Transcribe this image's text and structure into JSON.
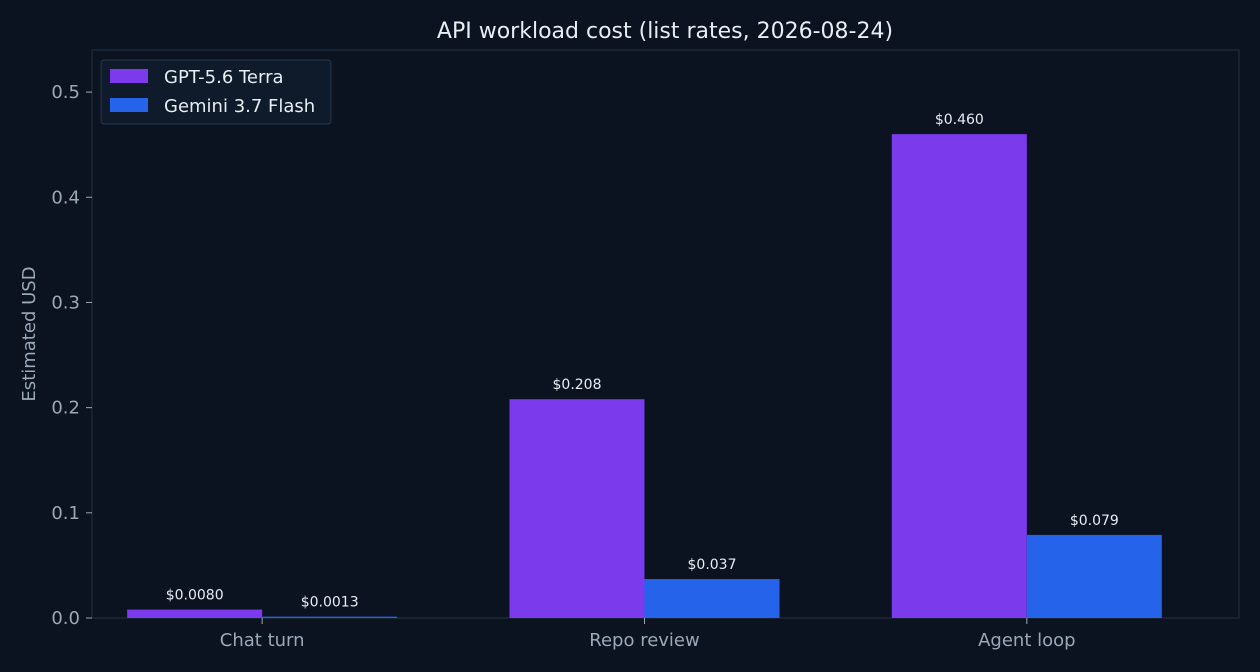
{
  "chart_data": {
    "type": "bar",
    "title": "API workload cost (list rates, 2026-08-24)",
    "xlabel": "",
    "ylabel": "Estimated USD",
    "categories": [
      "Chat turn",
      "Repo review",
      "Agent loop"
    ],
    "series": [
      {
        "name": "GPT-5.6 Terra",
        "color": "#7c3aed",
        "values": [
          0.008,
          0.208,
          0.46
        ],
        "labels": [
          "$0.0080",
          "$0.208",
          "$0.460"
        ]
      },
      {
        "name": "Gemini 3.7 Flash",
        "color": "#2563eb",
        "values": [
          0.0013,
          0.037,
          0.079
        ],
        "labels": [
          "$0.0013",
          "$0.037",
          "$0.079"
        ]
      }
    ],
    "ylim": [
      0,
      0.54
    ],
    "yticks": [
      0.0,
      0.1,
      0.2,
      0.3,
      0.4,
      0.5
    ],
    "ytick_labels": [
      "0.0",
      "0.1",
      "0.2",
      "0.3",
      "0.4",
      "0.5"
    ],
    "grid": false,
    "legend": "top-left",
    "colors": {
      "background": "#0b1220",
      "axes": "#1e2d3d",
      "text": "#e6edf3",
      "muted_text": "#9aa8b8"
    }
  }
}
